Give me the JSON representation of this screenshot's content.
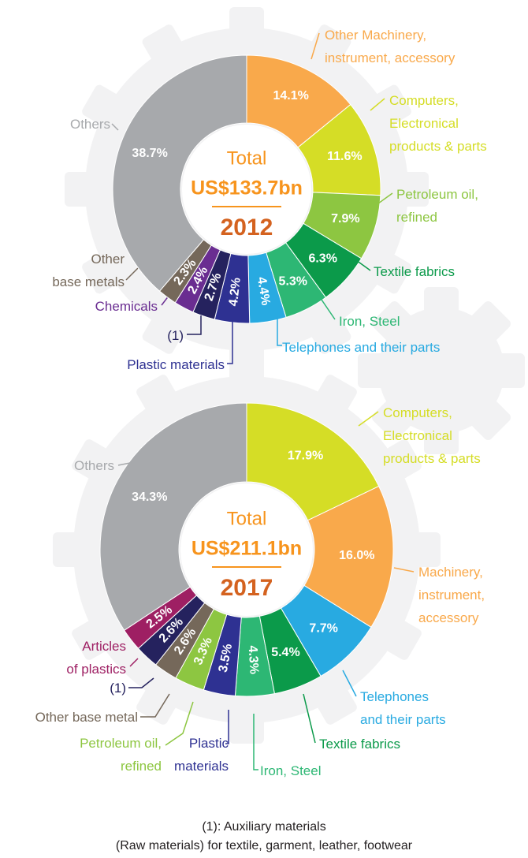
{
  "chart_data": [
    {
      "type": "pie",
      "title": "2012",
      "center_label": "Total",
      "total": {
        "value": 133.7,
        "label": "US$133.7bn"
      },
      "categories": [
        "Other Machinery,\ninstrument, accessory",
        "Computers,\nElectronical\nproducts & parts",
        "Petroleum oil,\nrefined",
        "Textile fabrics",
        "Iron, Steel",
        "Telephones and their parts",
        "Plastic materials",
        "(1)",
        "Chemicals",
        "Other\nbase metals",
        "Others"
      ],
      "values": [
        14.1,
        11.6,
        7.9,
        6.3,
        5.3,
        4.4,
        4.2,
        2.7,
        2.4,
        2.3,
        38.7
      ],
      "value_labels": [
        "14.1%",
        "11.6%",
        "7.9%",
        "6.3%",
        "5.3%",
        "4.4%",
        "4.2%",
        "2.7%",
        "2.4%",
        "2.3%",
        "38.7%"
      ],
      "colors": [
        "#f9a94b",
        "#d5dd26",
        "#8dc641",
        "#0b9a4a",
        "#2db774",
        "#28aae1",
        "#2e3192",
        "#25225e",
        "#6a2d91",
        "#75685a",
        "#a7a9ac"
      ]
    },
    {
      "type": "pie",
      "title": "2017",
      "center_label": "Total",
      "total": {
        "value": 211.1,
        "label": "US$211.1bn"
      },
      "categories": [
        "Computers,\nElectronical\nproducts & parts",
        "Machinery,\ninstrument,\naccessory",
        "Telephones\nand their parts",
        "Textile fabrics",
        "Iron, Steel",
        "Plastic\nmaterials",
        "Petroleum oil,\nrefined",
        "Other base metal",
        "(1)",
        "Articles\nof plastics",
        "Others"
      ],
      "values": [
        17.9,
        16.0,
        7.7,
        5.4,
        4.3,
        3.5,
        3.3,
        2.6,
        2.6,
        2.5,
        34.3
      ],
      "value_labels": [
        "17.9%",
        "16.0%",
        "7.7%",
        "5.4%",
        "4.3%",
        "3.5%",
        "3.3%",
        "2.6%",
        "2.6%",
        "2.5%",
        "34.3%"
      ],
      "colors": [
        "#d5dd26",
        "#f9a94b",
        "#28aae1",
        "#0b9a4a",
        "#2db774",
        "#2e3192",
        "#8dc641",
        "#75685a",
        "#25225e",
        "#9e1f63",
        "#a7a9ac"
      ]
    }
  ],
  "footnote": [
    "(1): Auxiliary materials",
    "(Raw materials) for textile, garment, leather, footwear"
  ]
}
